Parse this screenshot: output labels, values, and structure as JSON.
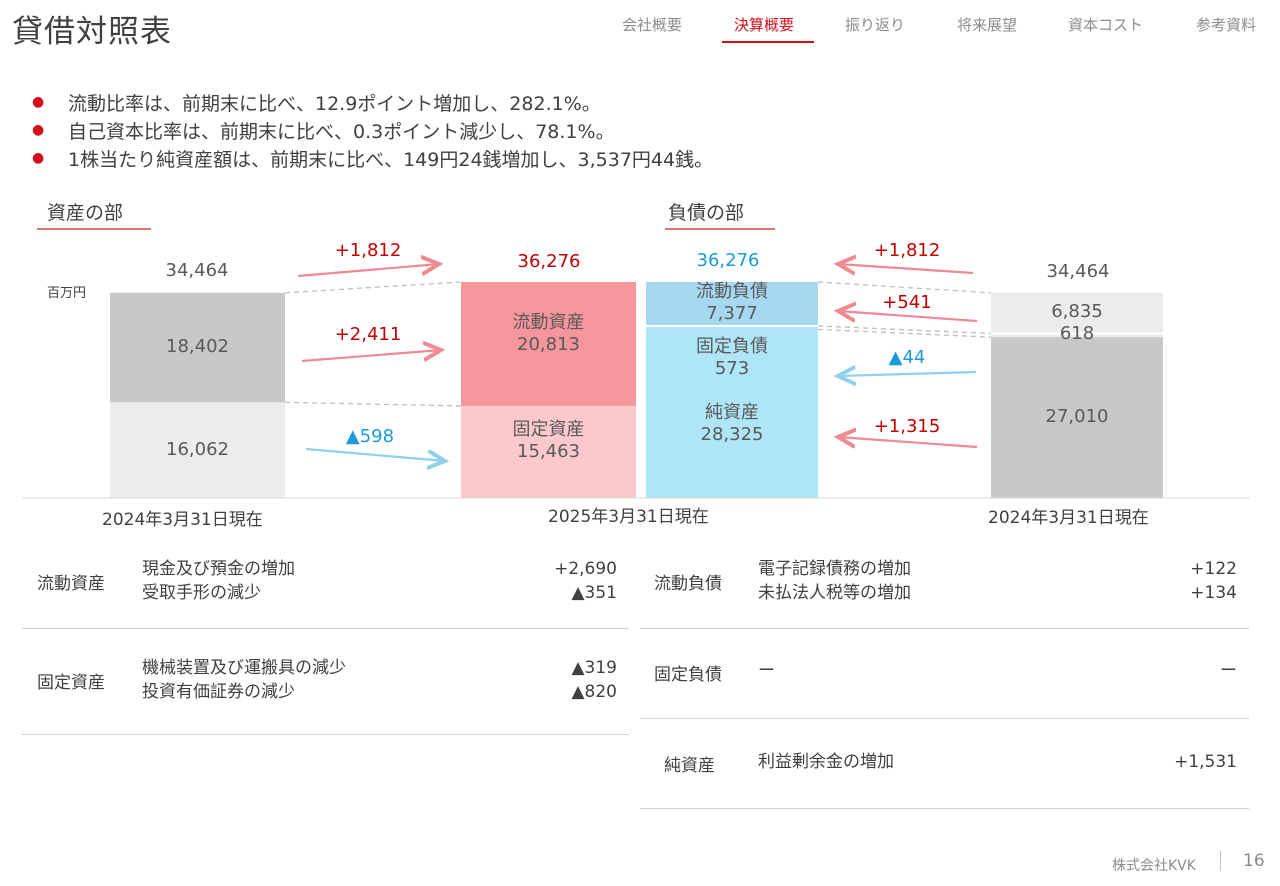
{
  "header": {
    "title": "貸借対照表",
    "nav": [
      "会社概要",
      "決算概要",
      "振り返り",
      "将来展望",
      "資本コスト",
      "参考資料"
    ],
    "active_index": 1
  },
  "bullets": [
    "流動比率は、前期末に比べ、12.9ポイント増加し、282.1%。",
    "自己資本比率は、前期末に比べ、0.3ポイント減少し、78.1%。",
    "1株当たり純資産額は、前期末に比べ、149円24銭増加し、3,537円44銭。"
  ],
  "colors": {
    "accent": "#d0101b",
    "increase": "#c00000",
    "decrease": "#1a9ad6",
    "current_assets": "#f7959c",
    "fixed_assets": "#fbc8cc",
    "liabilities_current": "#a6d8f2",
    "net_assets": "#aee5f7",
    "prior_gray_dark": "#c8c8c8",
    "prior_gray_light": "#ececec"
  },
  "chart_data": {
    "type": "bar",
    "unit": "百万円",
    "section_assets": "資産の部",
    "section_liabilities": "負債の部",
    "columns": [
      {
        "date": "2024年3月31日現在",
        "total": "34,464",
        "segments": [
          {
            "name": "",
            "value": 18402,
            "label": "18,402"
          },
          {
            "name": "",
            "value": 16062,
            "label": "16,062"
          }
        ]
      },
      {
        "date": "2025年3月31日現在",
        "total": "36,276",
        "segments": [
          {
            "name": "流動資産",
            "value": 20813,
            "label": "20,813"
          },
          {
            "name": "固定資産",
            "value": 15463,
            "label": "15,463"
          }
        ]
      },
      {
        "date": "",
        "total": "36,276",
        "segments": [
          {
            "name": "流動負債",
            "value": 7377,
            "label": "7,377"
          },
          {
            "name": "固定負債",
            "value": 573,
            "label": "573"
          },
          {
            "name": "純資産",
            "value": 28325,
            "label": "28,325"
          }
        ]
      },
      {
        "date": "2024年3月31日現在",
        "total": "34,464",
        "segments": [
          {
            "name": "",
            "value": 6835,
            "label": "6,835"
          },
          {
            "name": "",
            "value": 618,
            "label": "618"
          },
          {
            "name": "",
            "value": 27010,
            "label": "27,010"
          }
        ]
      }
    ],
    "changes_assets": [
      {
        "label": "+1,812",
        "value": 1812
      },
      {
        "label": "+2,411",
        "value": 2411
      },
      {
        "label": "▲598",
        "value": -598
      }
    ],
    "changes_liabilities": [
      {
        "label": "+1,812",
        "value": 1812
      },
      {
        "label": "+541",
        "value": 541
      },
      {
        "label": "▲44",
        "value": -44
      },
      {
        "label": "+1,315",
        "value": 1315
      }
    ]
  },
  "table_left": [
    {
      "category": "流動資産",
      "items": [
        "現金及び預金の増加",
        "受取手形の減少"
      ],
      "values": [
        "+2,690",
        "▲351"
      ]
    },
    {
      "category": "固定資産",
      "items": [
        "機械装置及び運搬具の減少",
        "投資有価証券の減少"
      ],
      "values": [
        "▲319",
        "▲820"
      ]
    }
  ],
  "table_right": [
    {
      "category": "流動負債",
      "items": [
        "電子記録債務の増加",
        "未払法人税等の増加"
      ],
      "values": [
        "+122",
        "+134"
      ]
    },
    {
      "category": "固定負債",
      "items": [
        "ー"
      ],
      "values": [
        "ー"
      ]
    },
    {
      "category": "純資産",
      "items": [
        "利益剰余金の増加"
      ],
      "values": [
        "+1,531"
      ]
    }
  ],
  "footer": {
    "company": "株式会社KVK",
    "page": "16"
  }
}
